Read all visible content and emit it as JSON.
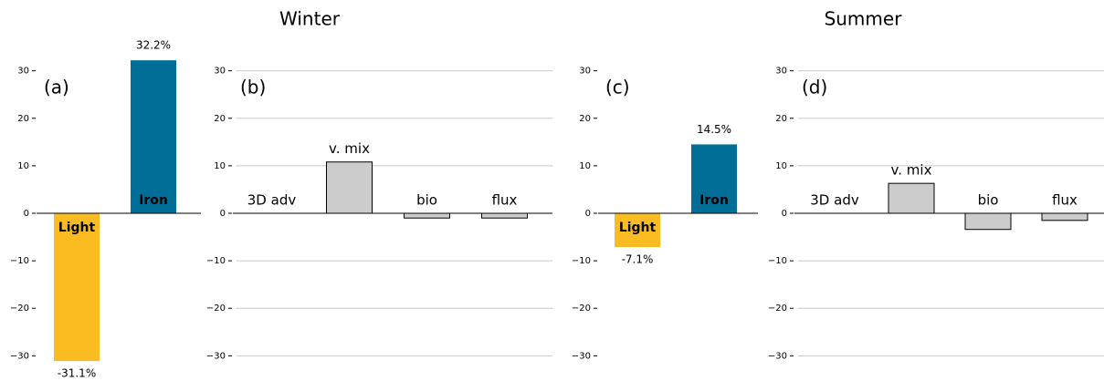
{
  "chart_data": [
    {
      "type": "bar",
      "title": "Winter",
      "panel_label": "(a)",
      "categories": [
        "Light",
        "Iron"
      ],
      "values": [
        -31.1,
        32.2
      ],
      "value_labels": [
        "-31.1%",
        "32.2%"
      ],
      "colors": [
        "#fbbc22",
        "#006e96"
      ],
      "label_colors": [
        "#000000",
        "#ffffff"
      ],
      "value_label_colors": [
        "#e65100",
        "#1d4e89"
      ],
      "label_position": "inside",
      "ylim": [
        -33,
        33
      ],
      "yticks": [
        {
          "value": -30,
          "label": "−30"
        },
        {
          "value": -20,
          "label": "−20"
        },
        {
          "value": -10,
          "label": "−10"
        },
        0,
        10,
        20,
        30
      ],
      "grid": false
    },
    {
      "type": "bar",
      "panel_label": "(b)",
      "categories": [
        "3D adv",
        "v. mix",
        "bio",
        "flux"
      ],
      "values": [
        0,
        10.8,
        -1,
        -1
      ],
      "colors": [
        "#cccccc",
        "#cccccc",
        "#cccccc",
        "#cccccc"
      ],
      "edgecolor": "#000000",
      "label_position": "above",
      "ylim": [
        -33,
        33
      ],
      "yticks": [
        {
          "value": -30,
          "label": "−30"
        },
        {
          "value": -20,
          "label": "−20"
        },
        {
          "value": -10,
          "label": "−10"
        },
        0,
        10,
        20,
        30
      ],
      "grid": true
    },
    {
      "type": "bar",
      "title": "Summer",
      "panel_label": "(c)",
      "categories": [
        "Light",
        "Iron"
      ],
      "values": [
        -7.1,
        14.5
      ],
      "value_labels": [
        "-7.1%",
        "14.5%"
      ],
      "colors": [
        "#fbbc22",
        "#006e96"
      ],
      "label_colors": [
        "#000000",
        "#ffffff"
      ],
      "value_label_colors": [
        "#e65100",
        "#1d4e89"
      ],
      "label_position": "inside",
      "ylim": [
        -33,
        33
      ],
      "yticks": [
        {
          "value": -30,
          "label": "−30"
        },
        {
          "value": -20,
          "label": "−20"
        },
        {
          "value": -10,
          "label": "−10"
        },
        0,
        10,
        20,
        30
      ],
      "grid": false
    },
    {
      "type": "bar",
      "panel_label": "(d)",
      "categories": [
        "3D adv",
        "v. mix",
        "bio",
        "flux"
      ],
      "values": [
        0,
        6.3,
        -3.4,
        -1.5
      ],
      "colors": [
        "#cccccc",
        "#cccccc",
        "#cccccc",
        "#cccccc"
      ],
      "edgecolor": "#000000",
      "label_position": "above",
      "ylim": [
        -33,
        33
      ],
      "yticks": [
        {
          "value": -30,
          "label": "−30"
        },
        {
          "value": -20,
          "label": "−20"
        },
        {
          "value": -10,
          "label": "−10"
        },
        0,
        10,
        20,
        30
      ],
      "grid": true
    }
  ]
}
